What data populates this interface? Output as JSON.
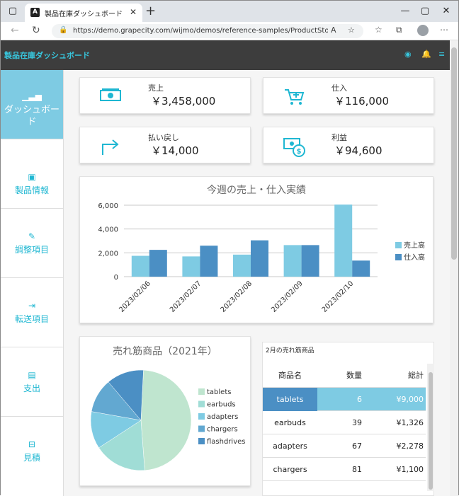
{
  "browser": {
    "tab_title": "製品在庫ダッシュボード",
    "url": "https://demo.grapecity.com/wijmo/demos/reference-samples/ProductStockDas..."
  },
  "app": {
    "title": "製品在庫ダッシュボード"
  },
  "sidebar": {
    "items": [
      {
        "label": "ダッシュボード",
        "icon": "bar-chart-icon"
      },
      {
        "label": "製品情報",
        "icon": "box-icon"
      },
      {
        "label": "調整項目",
        "icon": "edit-icon"
      },
      {
        "label": "転送項目",
        "icon": "transfer-icon"
      },
      {
        "label": "支出",
        "icon": "briefcase-icon"
      },
      {
        "label": "見積",
        "icon": "basket-icon"
      }
    ]
  },
  "kpis": [
    {
      "label": "売上",
      "value": "￥3,458,000",
      "icon": "money-icon"
    },
    {
      "label": "仕入",
      "value": "￥116,000",
      "icon": "cart-icon"
    },
    {
      "label": "払い戻し",
      "value": "￥14,000",
      "icon": "return-arrow-icon"
    },
    {
      "label": "利益",
      "value": "￥94,600",
      "icon": "profit-icon"
    }
  ],
  "chart_data": [
    {
      "type": "bar",
      "title": "今週の売上・仕入実績",
      "categories": [
        "2023/02/06",
        "2023/02/07",
        "2023/02/08",
        "2023/02/09",
        "2023/02/10"
      ],
      "series": [
        {
          "name": "売上高",
          "values": [
            1750,
            1700,
            1850,
            2650,
            6050
          ],
          "color": "#7ecbe3"
        },
        {
          "name": "仕入高",
          "values": [
            2250,
            2600,
            3050,
            2650,
            1350
          ],
          "color": "#4b8fc4"
        }
      ],
      "yticks": [
        "0",
        "2,000",
        "4,000",
        "6,000"
      ],
      "ylim": [
        0,
        6000
      ],
      "grid": true,
      "legend": "right"
    },
    {
      "type": "pie",
      "title": "売れ筋商品（2021年）",
      "labels": [
        "tablets",
        "earbuds",
        "adapters",
        "chargers",
        "flashdrives"
      ],
      "values": [
        48,
        17,
        12,
        11,
        12
      ],
      "colors": [
        "#bfe5cf",
        "#a0ddd6",
        "#7ecbe3",
        "#62a8d1",
        "#4b8fc4"
      ],
      "legend": "right"
    }
  ],
  "table": {
    "title": "2月の売れ筋商品",
    "headers": [
      "商品名",
      "数量",
      "総計"
    ],
    "rows": [
      [
        "tablets",
        "6",
        "¥9,000"
      ],
      [
        "earbuds",
        "39",
        "¥1,326"
      ],
      [
        "adapters",
        "67",
        "¥2,278"
      ],
      [
        "chargers",
        "81",
        "¥1,100"
      ]
    ]
  }
}
